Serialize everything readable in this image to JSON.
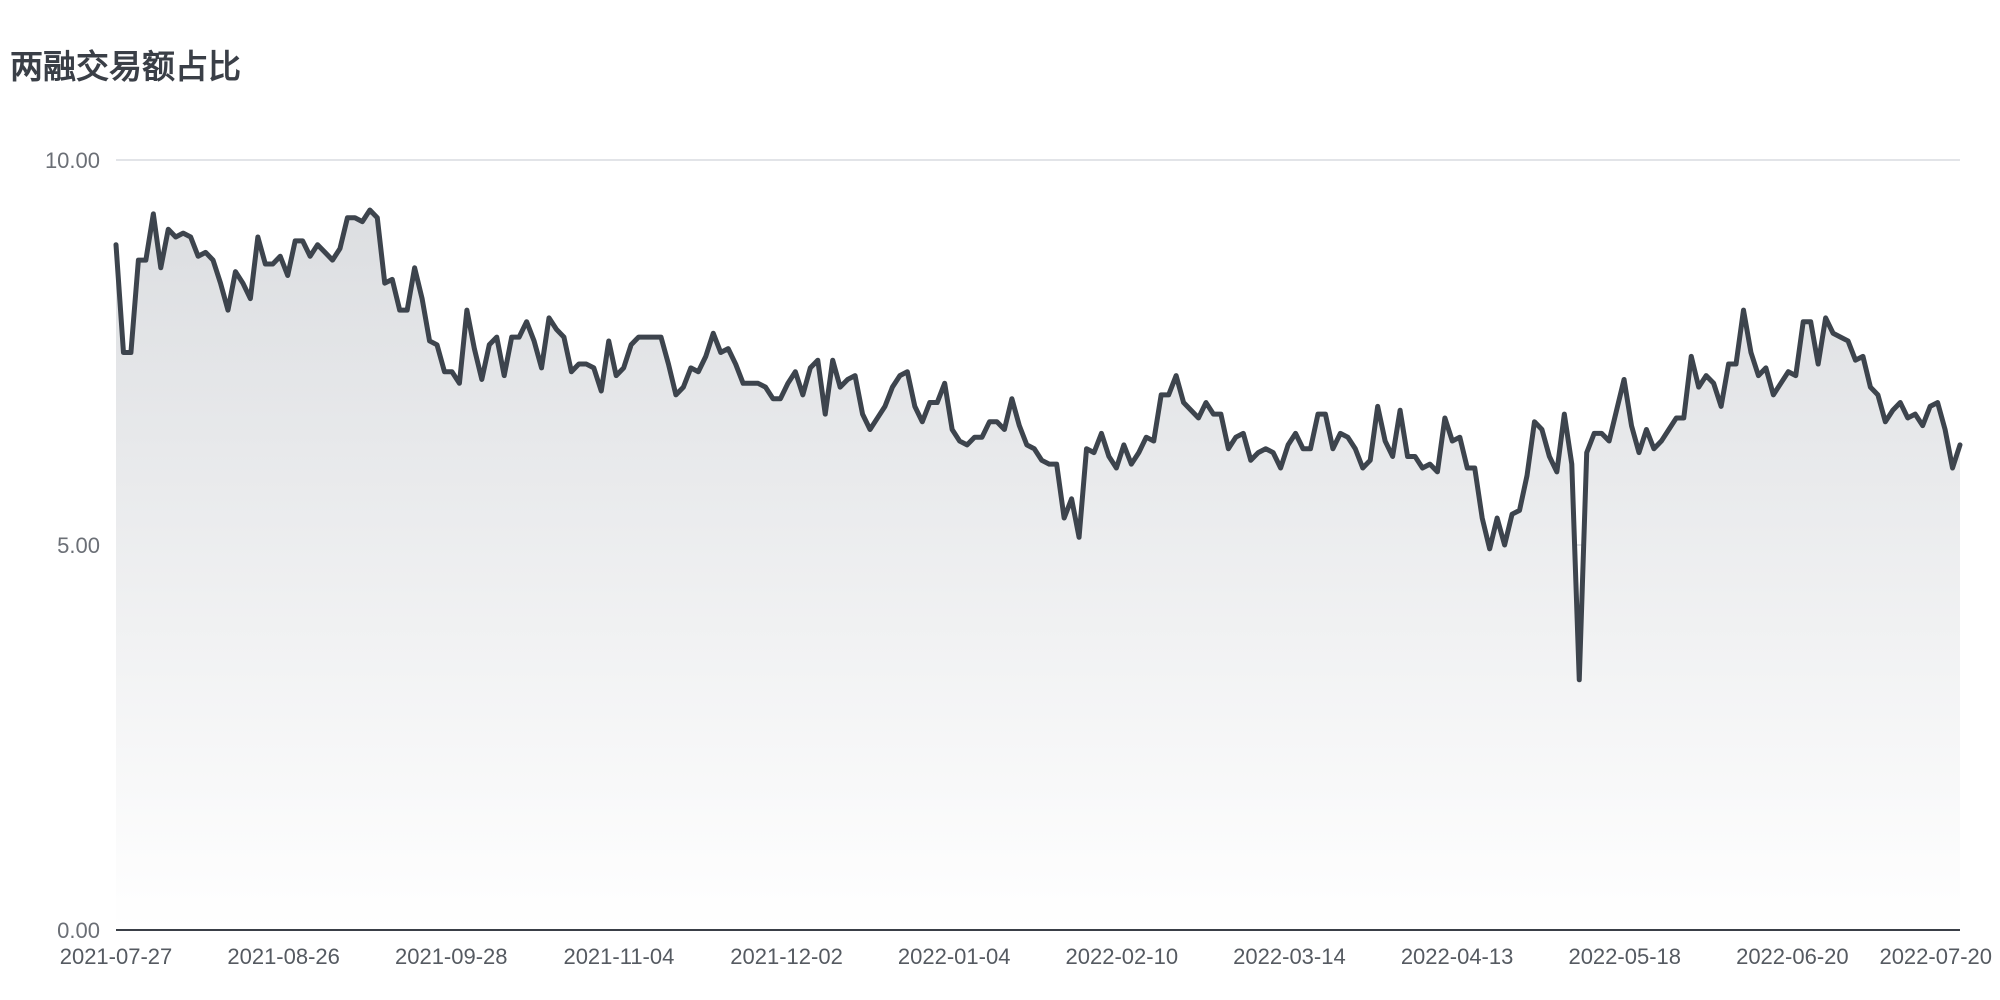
{
  "chart_data": {
    "type": "area",
    "title": "两融交易额占比",
    "xlabel": "",
    "ylabel": "",
    "ylim": [
      0,
      10
    ],
    "y_ticks": [
      "0.00",
      "5.00",
      "10.00"
    ],
    "x_tick_labels": [
      "2021-07-27",
      "2021-08-26",
      "2021-09-28",
      "2021-11-04",
      "2021-12-02",
      "2022-01-04",
      "2022-02-10",
      "2022-03-14",
      "2022-04-13",
      "2022-05-18",
      "2022-06-20",
      "2022-07-20"
    ],
    "grid": true,
    "legend": "none",
    "colors": {
      "line": "#3d444d",
      "fill_top": "#dcdee1",
      "fill_bottom": "#ffffff",
      "grid": "#d9dce0",
      "axis": "#3a3f47"
    },
    "series": [
      {
        "values": [
          8.9,
          7.5,
          7.5,
          8.7,
          8.7,
          9.3,
          8.6,
          9.1,
          9.0,
          9.05,
          9.0,
          8.75,
          8.8,
          8.7,
          8.4,
          8.05,
          8.55,
          8.4,
          8.2,
          9.0,
          8.65,
          8.65,
          8.75,
          8.5,
          8.95,
          8.95,
          8.75,
          8.9,
          8.8,
          8.7,
          8.85,
          9.25,
          9.25,
          9.2,
          9.35,
          9.25,
          8.4,
          8.45,
          8.05,
          8.05,
          8.6,
          8.2,
          7.65,
          7.6,
          7.25,
          7.25,
          7.1,
          8.05,
          7.55,
          7.15,
          7.6,
          7.7,
          7.2,
          7.7,
          7.7,
          7.9,
          7.65,
          7.3,
          7.95,
          7.8,
          7.7,
          7.25,
          7.35,
          7.35,
          7.3,
          7.0,
          7.65,
          7.2,
          7.3,
          7.6,
          7.7,
          7.7,
          7.7,
          7.7,
          7.35,
          6.95,
          7.05,
          7.3,
          7.25,
          7.45,
          7.75,
          7.5,
          7.55,
          7.35,
          7.1,
          7.1,
          7.1,
          7.05,
          6.9,
          6.9,
          7.1,
          7.25,
          6.95,
          7.3,
          7.4,
          6.7,
          7.4,
          7.05,
          7.15,
          7.2,
          6.7,
          6.5,
          6.65,
          6.8,
          7.05,
          7.2,
          7.25,
          6.8,
          6.6,
          6.85,
          6.85,
          7.1,
          6.5,
          6.35,
          6.3,
          6.4,
          6.4,
          6.6,
          6.6,
          6.5,
          6.9,
          6.55,
          6.3,
          6.25,
          6.1,
          6.05,
          6.05,
          5.35,
          5.6,
          5.1,
          6.25,
          6.2,
          6.45,
          6.15,
          6.0,
          6.3,
          6.05,
          6.2,
          6.4,
          6.35,
          6.95,
          6.95,
          7.2,
          6.85,
          6.75,
          6.65,
          6.85,
          6.7,
          6.7,
          6.25,
          6.4,
          6.45,
          6.1,
          6.2,
          6.25,
          6.2,
          6.0,
          6.3,
          6.45,
          6.25,
          6.25,
          6.7,
          6.7,
          6.25,
          6.45,
          6.4,
          6.25,
          6.0,
          6.1,
          6.8,
          6.35,
          6.15,
          6.75,
          6.15,
          6.15,
          6.0,
          6.05,
          5.95,
          6.65,
          6.35,
          6.4,
          6.0,
          6.0,
          5.35,
          4.95,
          5.35,
          5.0,
          5.4,
          5.45,
          5.9,
          6.6,
          6.5,
          6.15,
          5.95,
          6.7,
          6.05,
          3.25,
          6.2,
          6.45,
          6.45,
          6.35,
          6.75,
          7.15,
          6.55,
          6.2,
          6.5,
          6.25,
          6.35,
          6.5,
          6.65,
          6.65,
          7.45,
          7.05,
          7.2,
          7.1,
          6.8,
          7.35,
          7.35,
          8.05,
          7.5,
          7.2,
          7.3,
          6.95,
          7.1,
          7.25,
          7.2,
          7.9,
          7.9,
          7.35,
          7.95,
          7.75,
          7.7,
          7.65,
          7.4,
          7.45,
          7.05,
          6.95,
          6.6,
          6.75,
          6.85,
          6.65,
          6.7,
          6.55,
          6.8,
          6.85,
          6.5,
          6.0,
          6.3
        ]
      }
    ]
  }
}
